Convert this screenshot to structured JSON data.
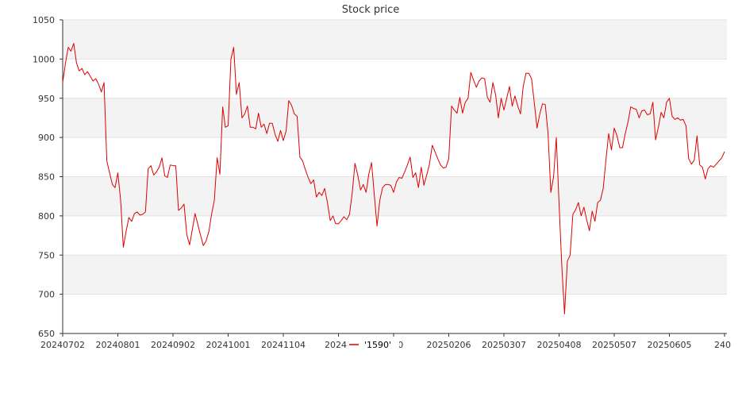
{
  "chart_data": {
    "type": "line",
    "title": "Stock price",
    "xlabel": "",
    "ylabel": "",
    "ylim": [
      650,
      1050
    ],
    "yticks": [
      650,
      700,
      750,
      800,
      850,
      900,
      950,
      1000,
      1050
    ],
    "xtick_labels": [
      "20240702",
      "20240801",
      "20240902",
      "20241001",
      "20241104",
      "20241",
      ".230",
      "20250206",
      "20250307",
      "20250408",
      "20250507",
      "20250605",
      "240"
    ],
    "legend": {
      "position": "bottom",
      "entries": [
        "'1590'"
      ]
    },
    "grid": "horizontal-bands",
    "colors": {
      "line": "#dd0000",
      "band": "#f3f3f3",
      "axis": "#333333"
    },
    "series": [
      {
        "name": "'1590'",
        "values": [
          970,
          995,
          1015,
          1010,
          1020,
          995,
          985,
          988,
          980,
          984,
          978,
          972,
          975,
          968,
          958,
          970,
          870,
          855,
          840,
          836,
          855,
          820,
          760,
          780,
          798,
          793,
          803,
          805,
          801,
          802,
          805,
          860,
          864,
          852,
          856,
          862,
          874,
          851,
          849,
          865,
          864,
          864,
          807,
          810,
          815,
          776,
          763,
          782,
          803,
          789,
          775,
          762,
          768,
          780,
          802,
          820,
          874,
          853,
          939,
          913,
          915,
          1000,
          1015,
          955,
          970,
          925,
          930,
          940,
          913,
          913,
          911,
          931,
          913,
          917,
          905,
          918,
          918,
          904,
          895,
          909,
          896,
          908,
          947,
          941,
          930,
          927,
          875,
          870,
          859,
          849,
          841,
          846,
          824,
          830,
          826,
          835,
          817,
          794,
          800,
          790,
          790,
          794,
          799,
          795,
          802,
          830,
          867,
          852,
          833,
          840,
          830,
          853,
          868,
          826,
          787,
          820,
          836,
          840,
          840,
          839,
          830,
          843,
          849,
          848,
          856,
          865,
          875,
          849,
          855,
          836,
          862,
          839,
          852,
          866,
          890,
          882,
          873,
          865,
          861,
          862,
          873,
          940,
          935,
          931,
          951,
          931,
          945,
          950,
          983,
          973,
          964,
          972,
          976,
          975,
          951,
          945,
          970,
          954,
          925,
          950,
          935,
          950,
          965,
          940,
          953,
          940,
          930,
          965,
          982,
          982,
          975,
          945,
          912,
          930,
          943,
          942,
          905,
          830,
          850,
          900,
          815,
          735,
          675,
          742,
          750,
          802,
          808,
          817,
          800,
          811,
          795,
          781,
          806,
          793,
          817,
          820,
          835,
          872,
          905,
          884,
          912,
          902,
          887,
          887,
          905,
          920,
          939,
          937,
          936,
          925,
          934,
          935,
          929,
          930,
          945,
          897,
          913,
          932,
          925,
          945,
          950,
          927,
          923,
          925,
          922,
          923,
          915,
          873,
          866,
          871,
          902,
          865,
          862,
          847,
          860,
          864,
          862,
          866,
          870,
          874,
          882
        ]
      }
    ]
  }
}
